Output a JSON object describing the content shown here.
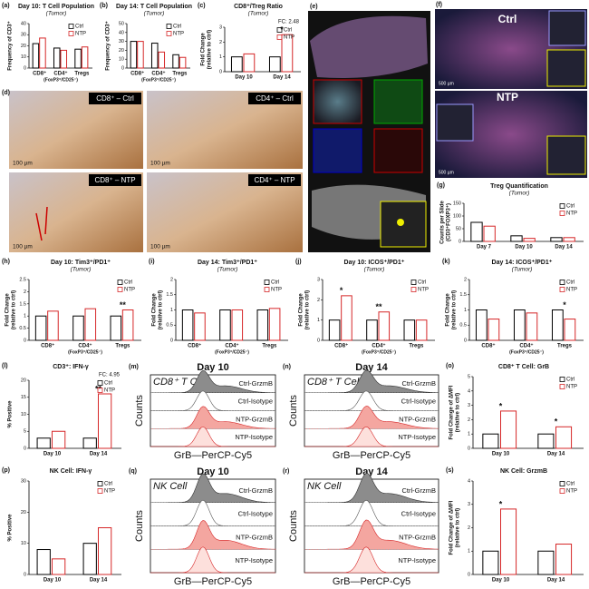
{
  "chart_data": [
    {
      "type": "bar",
      "letter": "(a)",
      "title": "Day 10: T Cell Population",
      "subtitle": "(Tumor)",
      "ylabel": [
        "Frequency of CD3⁺"
      ],
      "categories": [
        "CD8⁺",
        "CD4⁺",
        "Tregs"
      ],
      "category_notes": [
        null,
        "(FoxP3⁺/CD25⁻)",
        null
      ],
      "series": [
        {
          "name": "Ctrl",
          "color": "#000000",
          "values": [
            22,
            18,
            17
          ]
        },
        {
          "name": "NTP",
          "color": "#d62728",
          "values": [
            27,
            16,
            19
          ]
        }
      ],
      "ylim": [
        0,
        40
      ],
      "yticks": [
        0,
        10,
        20,
        30,
        40
      ]
    },
    {
      "type": "bar",
      "letter": "(b)",
      "title": "Day 14: T Cell Population",
      "subtitle": "(Tumor)",
      "ylabel": [
        "Frequency of CD3⁺"
      ],
      "categories": [
        "CD8⁺",
        "CD4⁺",
        "Tregs"
      ],
      "category_notes": [
        null,
        "(FoxP3⁺/CD25⁻)",
        null
      ],
      "series": [
        {
          "name": "Ctrl",
          "color": "#000000",
          "values": [
            30,
            28,
            15
          ]
        },
        {
          "name": "NTP",
          "color": "#d62728",
          "values": [
            30,
            18,
            12
          ]
        }
      ],
      "ylim": [
        0,
        50
      ],
      "yticks": [
        0,
        10,
        20,
        30,
        40,
        50
      ]
    },
    {
      "type": "bar",
      "letter": "(c)",
      "title": "CD8⁺/Treg Ratio",
      "subtitle": "(Tumor)",
      "ylabel": [
        "Fold Change",
        "(relative to ctrl)"
      ],
      "categories": [
        "Day 10",
        "Day 14"
      ],
      "series": [
        {
          "name": "Ctrl",
          "color": "#000000",
          "values": [
            1,
            1
          ]
        },
        {
          "name": "NTP",
          "color": "#d62728",
          "values": [
            1.2,
            2.5
          ]
        }
      ],
      "ylim": [
        0,
        3
      ],
      "yticks": [
        0,
        1,
        2,
        3
      ],
      "significance": [
        null,
        "*"
      ],
      "annotation": "FC: 2.48"
    },
    {
      "type": "bar",
      "letter": "(g)",
      "title": "Treg Quantification",
      "subtitle": "(Tumor)",
      "ylabel": [
        "Counts per Slide",
        "(CD3⁺FOXP3⁺)"
      ],
      "categories": [
        "Day 7",
        "Day 10",
        "Day 14"
      ],
      "series": [
        {
          "name": "Ctrl",
          "color": "#000000",
          "values": [
            75,
            22,
            15
          ]
        },
        {
          "name": "NTP",
          "color": "#d62728",
          "values": [
            60,
            12,
            15
          ]
        }
      ],
      "ylim": [
        0,
        150
      ],
      "yticks": [
        0,
        50,
        100,
        150
      ]
    },
    {
      "type": "bar",
      "letter": "(h)",
      "title": "Day 10: Tim3⁺/PD1⁺",
      "subtitle": "(Tumor)",
      "ylabel": [
        "Fold Change",
        "(relative to ctrl)"
      ],
      "categories": [
        "CD8⁺",
        "CD4⁺",
        "Tregs"
      ],
      "category_notes": [
        null,
        "(FoxP3⁺/CD25⁻)",
        null
      ],
      "series": [
        {
          "name": "Ctrl",
          "color": "#000000",
          "values": [
            1,
            1,
            1
          ]
        },
        {
          "name": "NTP",
          "color": "#d62728",
          "values": [
            1.2,
            1.3,
            1.25
          ]
        }
      ],
      "ylim": [
        0,
        2.5
      ],
      "yticks": [
        0,
        0.5,
        1,
        1.5,
        2,
        2.5
      ],
      "significance": [
        null,
        null,
        "**"
      ]
    },
    {
      "type": "bar",
      "letter": "(i)",
      "title": "Day 14: Tim3⁺/PD1⁺",
      "subtitle": "(Tumor)",
      "ylabel": [
        "Fold Change",
        "(relative to ctrl)"
      ],
      "categories": [
        "CD8⁺",
        "CD4⁺",
        "Tregs"
      ],
      "category_notes": [
        null,
        "(FoxP3⁺/CD25⁻)",
        null
      ],
      "series": [
        {
          "name": "Ctrl",
          "color": "#000000",
          "values": [
            1,
            1,
            1
          ]
        },
        {
          "name": "NTP",
          "color": "#d62728",
          "values": [
            0.9,
            1,
            1.05
          ]
        }
      ],
      "ylim": [
        0,
        2
      ],
      "yticks": [
        0,
        0.5,
        1,
        1.5,
        2
      ]
    },
    {
      "type": "bar",
      "letter": "(j)",
      "title": "Day 10: ICOS⁺/PD1⁺",
      "subtitle": "(Tumor)",
      "ylabel": [
        "Fold Change",
        "(relative to ctrl)"
      ],
      "categories": [
        "CD8⁺",
        "CD4⁺",
        "Tregs"
      ],
      "category_notes": [
        null,
        "(FoxP3⁺/CD25⁻)",
        null
      ],
      "series": [
        {
          "name": "Ctrl",
          "color": "#000000",
          "values": [
            1,
            1,
            1
          ]
        },
        {
          "name": "NTP",
          "color": "#d62728",
          "values": [
            2.2,
            1.4,
            1
          ]
        }
      ],
      "ylim": [
        0,
        3
      ],
      "yticks": [
        0,
        1,
        2,
        3
      ],
      "significance": [
        "*",
        "**",
        null
      ]
    },
    {
      "type": "bar",
      "letter": "(k)",
      "title": "Day 14: ICOS⁺/PD1⁺",
      "subtitle": "(Tumor)",
      "ylabel": [
        "Fold Change",
        "(relative to ctrl)"
      ],
      "categories": [
        "CD8⁺",
        "CD4⁺",
        "Tregs"
      ],
      "category_notes": [
        null,
        "(FoxP3⁺/CD25⁻)",
        null
      ],
      "series": [
        {
          "name": "Ctrl",
          "color": "#000000",
          "values": [
            1,
            1,
            1
          ]
        },
        {
          "name": "NTP",
          "color": "#d62728",
          "values": [
            0.7,
            0.9,
            0.7
          ]
        }
      ],
      "ylim": [
        0,
        2
      ],
      "yticks": [
        0,
        0.5,
        1,
        1.5,
        2
      ],
      "significance": [
        null,
        null,
        "*"
      ]
    },
    {
      "type": "bar",
      "letter": "(l)",
      "title": "CD3⁺: IFN-γ",
      "ylabel": [
        "% Positive"
      ],
      "categories": [
        "Day 10",
        "Day 14"
      ],
      "series": [
        {
          "name": "Ctrl",
          "color": "#000000",
          "values": [
            3,
            3
          ]
        },
        {
          "name": "NTP",
          "color": "#d62728",
          "values": [
            5,
            16
          ]
        }
      ],
      "ylim": [
        0,
        20
      ],
      "yticks": [
        0,
        5,
        10,
        15,
        20
      ],
      "significance": [
        null,
        "**"
      ],
      "annotation": "FC: 4.95"
    },
    {
      "type": "bar",
      "letter": "(o)",
      "title": "CD8⁺ T Cell: GrB",
      "ylabel": [
        "Fold Change of ΔMFI",
        "(relative to ctrl)"
      ],
      "categories": [
        "Day 10",
        "Day 14"
      ],
      "series": [
        {
          "name": "Ctrl",
          "color": "#000000",
          "values": [
            1,
            1
          ]
        },
        {
          "name": "NTP",
          "color": "#d62728",
          "values": [
            2.6,
            1.5
          ]
        }
      ],
      "ylim": [
        0,
        5
      ],
      "yticks": [
        0,
        1,
        2,
        3,
        4,
        5
      ],
      "significance": [
        "*",
        "*"
      ]
    },
    {
      "type": "bar",
      "letter": "(p)",
      "title": "NK Cell: IFN-γ",
      "ylabel": [
        "% Positive"
      ],
      "categories": [
        "Day 10",
        "Day 14"
      ],
      "series": [
        {
          "name": "Ctrl",
          "color": "#000000",
          "values": [
            8,
            10
          ]
        },
        {
          "name": "NTP",
          "color": "#d62728",
          "values": [
            5,
            15
          ]
        }
      ],
      "ylim": [
        0,
        30
      ],
      "yticks": [
        0,
        10,
        20,
        30
      ]
    },
    {
      "type": "bar",
      "letter": "(s)",
      "title": "NK Cell: GrzmB",
      "ylabel": [
        "Fold Change of ΔMFI",
        "(relative to ctrl)"
      ],
      "categories": [
        "Day 10",
        "Day 14"
      ],
      "series": [
        {
          "name": "Ctrl",
          "color": "#000000",
          "values": [
            1,
            1
          ]
        },
        {
          "name": "NTP",
          "color": "#d62728",
          "values": [
            2.8,
            1.3
          ]
        }
      ],
      "ylim": [
        0,
        4
      ],
      "yticks": [
        0,
        1,
        2,
        3,
        4
      ],
      "significance": [
        "*",
        null
      ]
    }
  ],
  "histograms": [
    {
      "letter": "(m)",
      "title": "Day 10",
      "cell_label": "CD8⁺ T Cell",
      "rows": [
        "Ctrl-GrzmB",
        "Ctrl-Isotype",
        "NTP-GrzmB",
        "NTP-Isotype"
      ],
      "y_label": "Counts",
      "x_label": "GrB—PerCP-Cy5"
    },
    {
      "letter": "(n)",
      "title": "Day 14",
      "cell_label": "CD8⁺ T Cell",
      "rows": [
        "Ctrl-GrzmB",
        "Ctrl-Isotype",
        "NTP-GrzmB",
        "NTP-Isotype"
      ],
      "y_label": "Counts",
      "x_label": "GrB—PerCP-Cy5"
    },
    {
      "letter": "(q)",
      "title": "Day 10",
      "cell_label": "NK Cell",
      "rows": [
        "Ctrl-GrzmB",
        "Ctrl-Isotype",
        "NTP-GrzmB",
        "NTP-Isotype"
      ],
      "y_label": "Counts",
      "x_label": "GrB—PerCP-Cy5"
    },
    {
      "letter": "(r)",
      "title": "Day 14",
      "cell_label": "NK Cell",
      "rows": [
        "Ctrl-GrzmB",
        "Ctrl-Isotype",
        "NTP-GrzmB",
        "NTP-Isotype"
      ],
      "y_label": "Counts",
      "x_label": "GrB—PerCP-Cy5"
    }
  ],
  "image_panels": {
    "d": {
      "letter": "(d)",
      "labels": [
        "CD8⁺ – Ctrl",
        "CD4⁺ – Ctrl",
        "CD8⁺ – NTP",
        "CD4⁺ – NTP"
      ],
      "scale_bar": "100 µm"
    },
    "e": {
      "letter": "(e)"
    },
    "f": {
      "letter": "(f)",
      "labels": [
        "Ctrl",
        "NTP"
      ],
      "scale_bar": "500 µm"
    }
  }
}
